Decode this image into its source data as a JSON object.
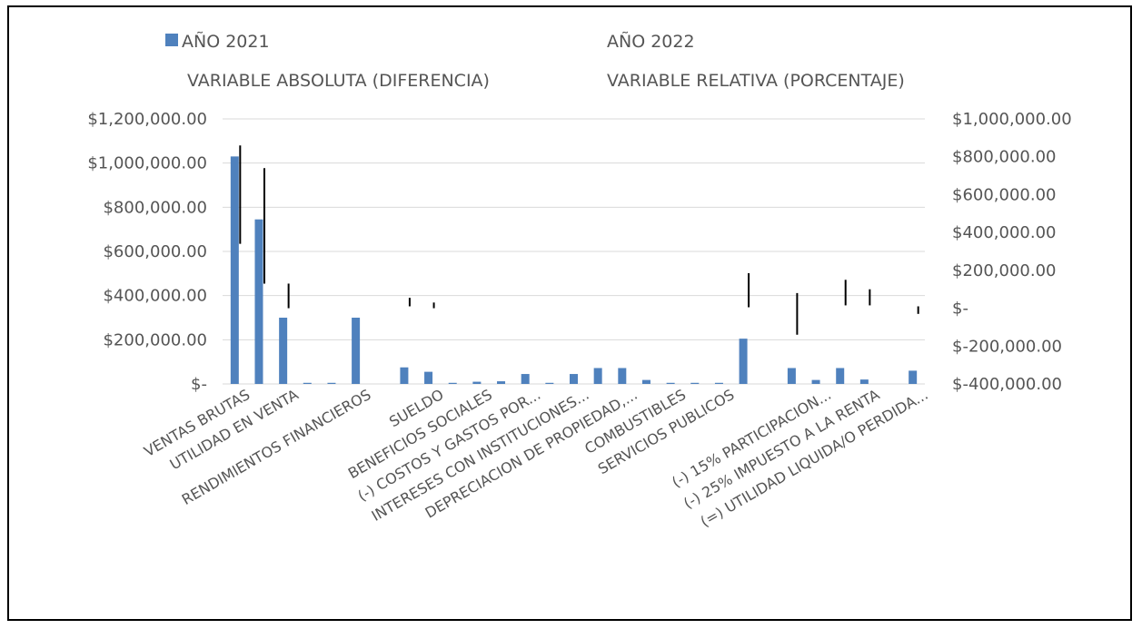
{
  "chart_data": {
    "type": "bar",
    "title": "",
    "legend": {
      "placement": "top",
      "entries": [
        {
          "name": "AÑO 2021",
          "color": "#4f81bd"
        },
        {
          "name": "AÑO 2022",
          "color": "#c0504d"
        },
        {
          "name": "VARIABLE ABSOLUTA (DIFERENCIA)",
          "color": "#9bbb59"
        },
        {
          "name": "VARIABLE RELATIVA (PORCENTAJE)",
          "color": "#000000"
        }
      ]
    },
    "y_left": {
      "ticks": [
        "$1,200,000.00",
        "$1,000,000.00",
        "$800,000.00",
        "$600,000.00",
        "$400,000.00",
        "$200,000.00",
        "$-"
      ],
      "min": 0,
      "max": 1200000
    },
    "y_right": {
      "ticks": [
        "$1,000,000.00",
        "$800,000.00",
        "$600,000.00",
        "$400,000.00",
        "$200,000.00",
        "$-",
        "$-200,000.00",
        "$-400,000.00"
      ],
      "min": -400000,
      "max": 1000000
    },
    "grid": true,
    "category_labels": [
      "VENTAS BRUTAS",
      "UTILIDAD EN VENTA",
      "RENDIMIENTOS FINANCIEROS",
      "SUELDO",
      "BENEFICIOS SOCIALES",
      "(-) COSTOS Y GASTOS POR...",
      "INTERESES CON INSTITUCIONES...",
      "DEPRECIACION DE PROPIEDAD,...",
      "COMBUSTIBLES",
      "SERVICIOS PUBLICOS",
      "(-) 15% PARTICIPACION...",
      "(-) 25% IMPUESTO A LA RENTA",
      "(=) UTILIDAD LIQUIDA/O PERDIDA..."
    ],
    "series_2021": [
      1030000,
      745000,
      300000,
      5000,
      5000,
      300000,
      0,
      75000,
      55000,
      5000,
      10000,
      12000,
      45000,
      5000,
      45000,
      72000,
      72000,
      18000,
      5000,
      5000,
      5000,
      205000,
      0,
      72000,
      18000,
      72000,
      20000,
      0,
      60000
    ],
    "series_relative": [
      {
        "index": 0,
        "low": 340000,
        "high": 860000
      },
      {
        "index": 1,
        "low": 130000,
        "high": 740000
      },
      {
        "index": 2,
        "low": 0,
        "high": 130000
      },
      {
        "index": 7,
        "low": 10000,
        "high": 55000
      },
      {
        "index": 8,
        "low": 0,
        "high": 30000
      },
      {
        "index": 21,
        "low": 5000,
        "high": 185000
      },
      {
        "index": 23,
        "low": -140000,
        "high": 80000
      },
      {
        "index": 25,
        "low": 15000,
        "high": 150000
      },
      {
        "index": 26,
        "low": 15000,
        "high": 100000
      },
      {
        "index": 28,
        "low": -30000,
        "high": 10000
      }
    ]
  }
}
